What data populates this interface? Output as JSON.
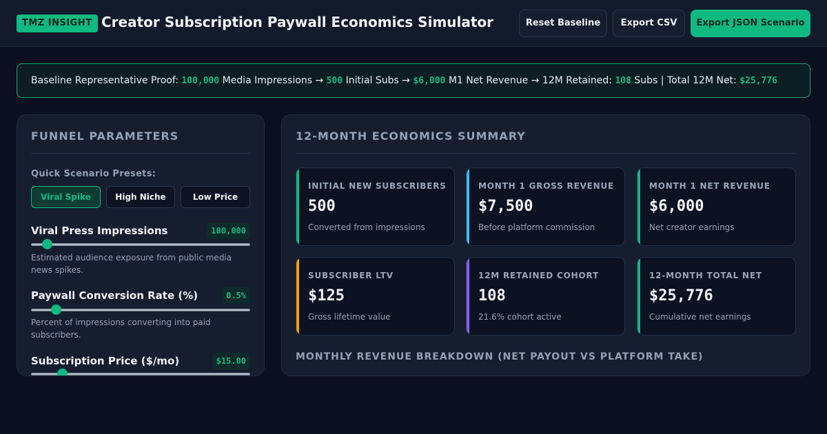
{
  "header": {
    "brand": "TMZ INSIGHT",
    "title": "Creator Subscription Paywall Economics Simulator",
    "buttons": {
      "reset": "Reset Baseline",
      "export_csv": "Export CSV",
      "export_json": "Export JSON Scenario"
    }
  },
  "proof": {
    "prefix": "Baseline Representative Proof: ",
    "impressions": "100,000",
    "impressions_label": " Media Impressions → ",
    "initial_subs": "500",
    "initial_subs_label": " Initial Subs → ",
    "m1_net": "$6,000",
    "m1_net_label": " M1 Net Revenue → 12M Retained: ",
    "retained": "108",
    "retained_label": " Subs | Total 12M Net: ",
    "total_net": "$25,776"
  },
  "funnel": {
    "title": "FUNNEL PARAMETERS",
    "preset_label": "Quick Scenario Presets:",
    "presets": [
      "Viral Spike",
      "High Niche",
      "Low Price"
    ],
    "active_preset": "Viral Spike",
    "params": [
      {
        "label": "Viral Press Impressions",
        "value": "100,000",
        "fraction": 0.07,
        "help": "Estimated audience exposure from public media news spikes."
      },
      {
        "label": "Paywall Conversion Rate (%)",
        "value": "0.5%",
        "fraction": 0.11,
        "help": "Percent of impressions converting into paid subscribers."
      },
      {
        "label": "Subscription Price ($/mo)",
        "value": "$15.00",
        "fraction": 0.14,
        "help": ""
      }
    ]
  },
  "summary": {
    "title": "12-MONTH ECONOMICS SUMMARY",
    "cards": [
      {
        "label": "INITIAL NEW SUBSCRIBERS",
        "value": "500",
        "sub": "Converted from impressions",
        "accent": "#10b981"
      },
      {
        "label": "MONTH 1 GROSS REVENUE",
        "value": "$7,500",
        "sub": "Before platform commission",
        "accent": "#38bdf8"
      },
      {
        "label": "MONTH 1 NET REVENUE",
        "value": "$6,000",
        "sub": "Net creator earnings",
        "accent": "#10b981"
      },
      {
        "label": "SUBSCRIBER LTV",
        "value": "$125",
        "sub": "Gross lifetime value",
        "accent": "#f59e0b"
      },
      {
        "label": "12M RETAINED COHORT",
        "value": "108",
        "sub": "21.6% cohort active",
        "accent": "#8b5cf6"
      },
      {
        "label": "12-MONTH TOTAL NET",
        "value": "$25,776",
        "sub": "Cumulative net earnings",
        "accent": "#10b981"
      }
    ],
    "breakdown_title": "MONTHLY REVENUE BREAKDOWN (NET PAYOUT VS PLATFORM TAKE)"
  },
  "colors": {
    "accent": "#10b981",
    "background": "#0b1020",
    "panel": "#151d2f"
  }
}
